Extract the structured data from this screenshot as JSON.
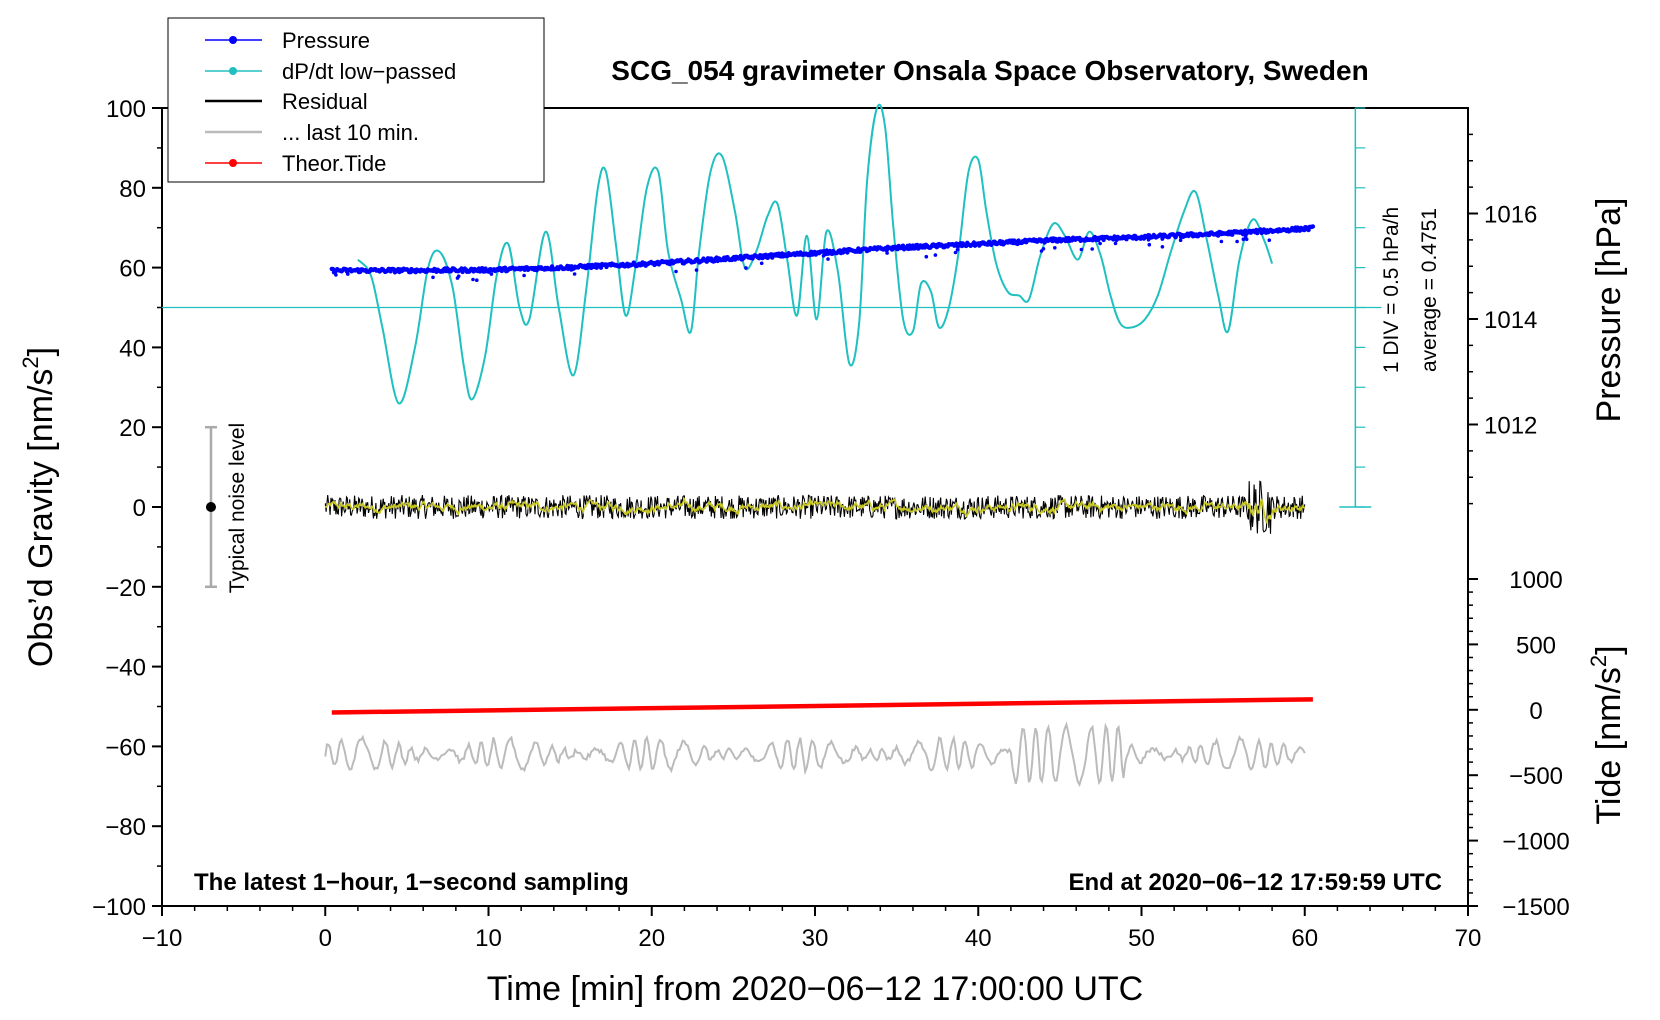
{
  "chart_data": {
    "type": "line",
    "title": "SCG_054 gravimeter Onsala Space Observatory, Sweden",
    "xlabel": "Time [min] from 2020−06−12 17:00:00 UTC",
    "ylabel_main": "Obs’d Gravity [nm/s",
    "ylabel_sup": "2",
    "ylabel_close": "]",
    "xlim": [
      -10,
      70
    ],
    "ylim": [
      -100,
      100
    ],
    "x_ticks": [
      "−10",
      "0",
      "10",
      "20",
      "30",
      "40",
      "50",
      "60",
      "70"
    ],
    "x_tick_values": [
      -10,
      0,
      10,
      20,
      30,
      40,
      50,
      60,
      70
    ],
    "y_ticks": [
      "100",
      "80",
      "60",
      "40",
      "20",
      "0",
      "−20",
      "−40",
      "−60",
      "−80",
      "−100"
    ],
    "y_tick_values": [
      100,
      80,
      60,
      40,
      20,
      0,
      -20,
      -40,
      -60,
      -80,
      -100
    ],
    "pressure_axis": {
      "label": "Pressure [hPa]",
      "ticks": [
        "1016",
        "1014",
        "1012"
      ],
      "tick_values": [
        1016,
        1014,
        1012
      ],
      "range": [
        1010,
        1018
      ]
    },
    "tide_axis": {
      "label_main": "Tide [nm/s",
      "label_sup": "2",
      "label_close": "]",
      "ticks": [
        "1000",
        "500",
        "0",
        "−500",
        "−1000",
        "−1500"
      ],
      "tick_values": [
        1000,
        500,
        0,
        -500,
        -1000,
        -1500
      ],
      "range": [
        -1500,
        1000
      ]
    },
    "legend": {
      "placement": "top-left",
      "entries": [
        {
          "label": "Pressure",
          "color": "#0000ff",
          "marker": true
        },
        {
          "label": "dP/dt low−passed",
          "color": "#20c0c0",
          "marker": true
        },
        {
          "label": "Residual",
          "color": "#000000",
          "marker": false
        },
        {
          "label": "... last 10 min.",
          "color": "#bbbbbb",
          "marker": false
        },
        {
          "label": "Theor.Tide",
          "color": "#ff0000",
          "marker": true
        }
      ]
    },
    "dpdt_scale": {
      "div_label": "1 DIV = 0.5 hPa/h",
      "average_label": "average = 0.4751",
      "baseline_gravity": 50
    },
    "noise_level": {
      "label": "Typical noise level",
      "x": -7,
      "center": 0,
      "half_range": 20
    },
    "footer_left": "The latest 1−hour, 1−second sampling",
    "footer_right": "End at 2020−06−12 17:59:59 UTC",
    "series": [
      {
        "name": "Pressure",
        "unit": "hPa",
        "color": "#0000ff",
        "x": [
          0.4,
          5,
          10,
          15,
          20,
          25,
          30,
          35,
          40,
          45,
          50,
          55,
          60.5
        ],
        "y": [
          1014.92,
          1014.92,
          1014.93,
          1014.98,
          1015.05,
          1015.15,
          1015.25,
          1015.35,
          1015.42,
          1015.5,
          1015.55,
          1015.62,
          1015.72
        ]
      },
      {
        "name": "dP/dt low−passed",
        "unit": "nm/s2 display",
        "color": "#20c0c0",
        "x": [
          2,
          2.8,
          3.5,
          4.5,
          5.5,
          6.3,
          7,
          7.8,
          8.5,
          9,
          9.8,
          10.5,
          11.2,
          11.9,
          12.5,
          13.5,
          14.3,
          15.2,
          16,
          16.7,
          17.2,
          17.8,
          18.4,
          19,
          19.7,
          20.4,
          21,
          21.8,
          22.4,
          22.9,
          23.6,
          24.3,
          25.1,
          25.7,
          26.4,
          27.1,
          27.7,
          28.3,
          28.9,
          29.5,
          30.1,
          30.7,
          31.4,
          32.1,
          32.7,
          33.2,
          33.8,
          34.3,
          34.8,
          35.4,
          36,
          36.5,
          37.1,
          37.6,
          38.2,
          38.8,
          39.4,
          40,
          40.5,
          41.1,
          41.8,
          42.5,
          43.1,
          43.8,
          44.6,
          45.3,
          46.1,
          46.8,
          47.5,
          48.1,
          48.7,
          49.4,
          50.2,
          51,
          51.8,
          52.6,
          53.3,
          54,
          54.7,
          55.3,
          56,
          56.8,
          57.5,
          58
        ],
        "y": [
          62,
          58,
          45,
          26,
          40,
          60,
          64,
          55,
          35,
          27,
          38,
          58,
          66,
          50,
          47,
          69,
          50,
          33,
          55,
          80,
          84,
          66,
          48,
          60,
          80,
          84,
          64,
          52,
          44,
          64,
          84,
          88,
          74,
          60,
          64,
          73,
          76,
          62,
          48,
          68,
          47,
          69,
          59,
          36,
          46,
          82,
          100,
          95,
          70,
          47,
          44,
          56,
          54,
          45,
          50,
          64,
          84,
          87,
          74,
          61,
          54,
          53,
          52,
          63,
          71,
          68,
          62,
          69,
          63,
          53,
          46,
          45,
          47,
          53,
          64,
          74,
          79,
          67,
          53,
          44,
          62,
          72,
          67,
          61
        ]
      },
      {
        "name": "Residual",
        "unit": "nm/s2",
        "color": "#000000",
        "x": [
          0,
          60
        ],
        "y": [
          0,
          0
        ],
        "noise_amplitude": 3
      },
      {
        "name": "... last 10 min.",
        "unit": "nm/s2",
        "color": "#bbbbbb",
        "x": [
          0,
          60
        ],
        "y": [
          -62,
          -62
        ]
      },
      {
        "name": "Theor.Tide",
        "unit": "nm/s2",
        "color": "#ff0000",
        "x": [
          0.4,
          60.5
        ],
        "y": [
          -51.5,
          -48.2
        ]
      }
    ]
  }
}
